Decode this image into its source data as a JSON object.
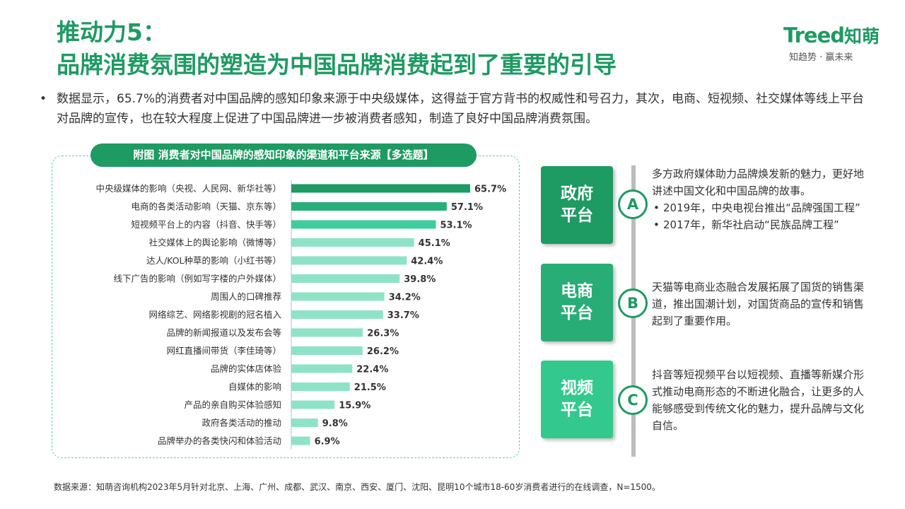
{
  "header": {
    "title_line1": "推动力5：",
    "title_line2": "品牌消费氛围的塑造为中国品牌消费起到了重要的引导",
    "logo_word": "Treed",
    "logo_cn": "知萌",
    "logo_tagline": "知趋势 · 赢未来"
  },
  "summary": {
    "bullet": "•",
    "text": "数据显示，65.7%的消费者对中国品牌的感知印象来源于中央级媒体，这得益于官方背书的权威性和号召力，其次，电商、短视频、社交媒体等线上平台对品牌的宣传，也在较大程度上促进了中国品牌进一步被消费者感知，制造了良好中国品牌消费氛围。"
  },
  "chart_data": {
    "type": "bar",
    "orientation": "horizontal",
    "title": "附图 消费者对中国品牌的感知印象的渠道和平台来源【多选题】",
    "categories": [
      "中央级媒体的影响（央视、人民网、新华社等）",
      "电商的各类活动影响（天猫、京东等）",
      "短视频平台上的内容（抖音、快手等）",
      "社交媒体上的舆论影响（微博等）",
      "达人/KOL种草的影响（小红书等）",
      "线下广告的影响（例如写字楼的户外媒体）",
      "周围人的口碑推荐",
      "网络综艺、网络影视剧的冠名植入",
      "品牌的新闻报道以及发布会等",
      "网红直播间带货（李佳琦等）",
      "品牌的实体店体验",
      "自媒体的影响",
      "产品的亲自购买体验感知",
      "政府各类活动的推动",
      "品牌举办的各类快闪和体验活动"
    ],
    "values": [
      65.7,
      57.1,
      53.1,
      45.1,
      42.4,
      39.8,
      34.2,
      33.7,
      26.3,
      26.2,
      22.4,
      21.5,
      15.9,
      9.8,
      6.9
    ],
    "value_labels": [
      "65.7%",
      "57.1%",
      "53.1%",
      "45.1%",
      "42.4%",
      "39.8%",
      "34.2%",
      "33.7%",
      "26.3%",
      "26.2%",
      "22.4%",
      "21.5%",
      "15.9%",
      "9.8%",
      "6.9%"
    ],
    "bar_colors": [
      "#1e9a63",
      "#27b07a",
      "#3fcd9c",
      "#8ee3c7",
      "#8ee3c7",
      "#8ee3c7",
      "#8ee3c7",
      "#8ee3c7",
      "#8ee3c7",
      "#8ee3c7",
      "#8ee3c7",
      "#8ee3c7",
      "#8ee3c7",
      "#8ee3c7",
      "#8ee3c7"
    ],
    "xlim": [
      0,
      70
    ],
    "grid": false,
    "legend": "none"
  },
  "platforms": [
    {
      "label_line1": "政府",
      "label_line2": "平台",
      "badge": "A",
      "color": "#1e9a63",
      "desc_main": "多方政府媒体助力品牌焕发新的魅力，更好地讲述中国文化和中国品牌的故事。",
      "desc_points": [
        "2019年，中央电视台推出“品牌强国工程”",
        "2017年，新华社启动“民族品牌工程”"
      ]
    },
    {
      "label_line1": "电商",
      "label_line2": "平台",
      "badge": "B",
      "color": "#28ad76",
      "desc_main": "天猫等电商业态融合发展拓展了国货的销售渠道，推出国潮计划，对国货商品的宣传和销售起到了重要作用。",
      "desc_points": []
    },
    {
      "label_line1": "视频",
      "label_line2": "平台",
      "badge": "C",
      "color": "#33c98e",
      "desc_main": "抖音等短视频平台以短视频、直播等新媒介形式推动电商形态的不断进化融合，让更多的人能够感受到传统文化的魅力，提升品牌与文化自信。",
      "desc_points": []
    }
  ],
  "footer": {
    "source": "数据来源：知萌咨询机构2023年5月针对北京、上海、广州、成都、武汉、南京、西安、厦门、沈阳、昆明10个城市18-60岁消费者进行的在线调查，N=1500。"
  }
}
